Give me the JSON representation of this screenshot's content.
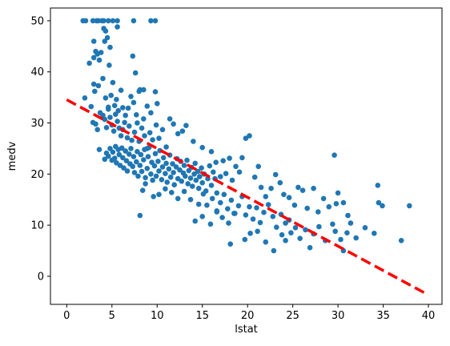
{
  "chart_data": {
    "type": "scatter",
    "title": "",
    "xlabel": "lstat",
    "ylabel": "medv",
    "xlim": [
      -1.8,
      41.5
    ],
    "ylim": [
      -5.5,
      52.5
    ],
    "x_ticks": [
      0,
      5,
      10,
      15,
      20,
      25,
      30,
      35,
      40
    ],
    "y_ticks": [
      0,
      10,
      20,
      30,
      40,
      50
    ],
    "grid": false,
    "colors": {
      "points": "#1f77b4",
      "fit_line": "#ff0000"
    },
    "series": [
      {
        "type": "scatter",
        "points": [
          [
            1.8,
            50
          ],
          [
            2.1,
            50
          ],
          [
            2.9,
            50
          ],
          [
            3.3,
            50
          ],
          [
            3.5,
            50
          ],
          [
            3.9,
            50
          ],
          [
            4.1,
            50
          ],
          [
            4.6,
            50
          ],
          [
            5.1,
            50
          ],
          [
            5.6,
            50
          ],
          [
            7.4,
            50
          ],
          [
            9.3,
            50
          ],
          [
            9.8,
            50
          ],
          [
            2.5,
            41.7
          ],
          [
            3.0,
            42.8
          ],
          [
            3.2,
            44.0
          ],
          [
            3.4,
            43.5
          ],
          [
            3.6,
            42.3
          ],
          [
            3.8,
            43.8
          ],
          [
            4.1,
            48.5
          ],
          [
            4.3,
            48.0
          ],
          [
            4.5,
            46.7
          ],
          [
            4.2,
            46.0
          ],
          [
            4.8,
            44.8
          ],
          [
            4.7,
            41.3
          ],
          [
            5.6,
            48.8
          ],
          [
            7.3,
            43.1
          ],
          [
            7.6,
            39.8
          ],
          [
            8.0,
            36.2
          ],
          [
            8.5,
            36.5
          ],
          [
            3.0,
            46.0
          ],
          [
            2.0,
            34.9
          ],
          [
            2.7,
            33.2
          ],
          [
            3.0,
            37.6
          ],
          [
            3.1,
            36.2
          ],
          [
            3.5,
            37.3
          ],
          [
            4.0,
            38.7
          ],
          [
            4.3,
            34.9
          ],
          [
            4.6,
            33.1
          ],
          [
            4.9,
            35.4
          ],
          [
            5.1,
            37.9
          ],
          [
            5.3,
            33.4
          ],
          [
            5.5,
            34.6
          ],
          [
            5.7,
            32.4
          ],
          [
            6.0,
            36.4
          ],
          [
            6.2,
            33.0
          ],
          [
            6.5,
            31.5
          ],
          [
            6.8,
            32.9
          ],
          [
            7.1,
            35.2
          ],
          [
            7.4,
            34.0
          ],
          [
            7.7,
            31.6
          ],
          [
            8.1,
            36.5
          ],
          [
            8.5,
            30.8
          ],
          [
            8.9,
            33.3
          ],
          [
            9.3,
            32.0
          ],
          [
            9.8,
            36.1
          ],
          [
            10.0,
            33.8
          ],
          [
            2.9,
            30.1
          ],
          [
            3.2,
            29.8
          ],
          [
            3.4,
            28.7
          ],
          [
            3.7,
            32.0
          ],
          [
            4.0,
            31.5
          ],
          [
            4.2,
            30.7
          ],
          [
            4.4,
            29.1
          ],
          [
            4.6,
            32.7
          ],
          [
            4.8,
            31.1
          ],
          [
            5.0,
            29.6
          ],
          [
            5.2,
            28.4
          ],
          [
            5.4,
            31.7
          ],
          [
            5.6,
            30.3
          ],
          [
            5.8,
            29.0
          ],
          [
            6.0,
            27.5
          ],
          [
            6.2,
            28.7
          ],
          [
            6.4,
            30.1
          ],
          [
            6.7,
            27.1
          ],
          [
            6.9,
            29.4
          ],
          [
            7.2,
            26.6
          ],
          [
            7.5,
            28.2
          ],
          [
            7.8,
            30.0
          ],
          [
            8.0,
            26.4
          ],
          [
            8.3,
            29.0
          ],
          [
            8.6,
            27.5
          ],
          [
            8.9,
            25.0
          ],
          [
            9.2,
            28.1
          ],
          [
            9.5,
            26.7
          ],
          [
            9.9,
            29.6
          ],
          [
            10.2,
            27.0
          ],
          [
            10.6,
            28.7
          ],
          [
            11.0,
            25.3
          ],
          [
            11.4,
            30.8
          ],
          [
            11.8,
            29.8
          ],
          [
            12.3,
            27.9
          ],
          [
            12.8,
            28.4
          ],
          [
            13.2,
            29.5
          ],
          [
            14.0,
            26.4
          ],
          [
            15.0,
            25.2
          ],
          [
            16.0,
            24.4
          ],
          [
            3.6,
            24.8
          ],
          [
            4.2,
            22.9
          ],
          [
            4.4,
            24.1
          ],
          [
            4.6,
            23.5
          ],
          [
            4.8,
            25.0
          ],
          [
            5.0,
            22.7
          ],
          [
            5.1,
            24.3
          ],
          [
            5.3,
            23.1
          ],
          [
            5.4,
            25.4
          ],
          [
            5.5,
            22.2
          ],
          [
            5.7,
            24.8
          ],
          [
            5.8,
            23.8
          ],
          [
            5.9,
            21.7
          ],
          [
            6.1,
            25.1
          ],
          [
            6.2,
            23.2
          ],
          [
            6.3,
            21.2
          ],
          [
            6.5,
            24.5
          ],
          [
            6.6,
            22.6
          ],
          [
            6.7,
            20.6
          ],
          [
            6.9,
            23.9
          ],
          [
            7.0,
            22.0
          ],
          [
            7.1,
            25.0
          ],
          [
            7.3,
            21.5
          ],
          [
            7.4,
            23.4
          ],
          [
            7.5,
            20.3
          ],
          [
            7.7,
            22.4
          ],
          [
            7.8,
            24.4
          ],
          [
            7.9,
            19.6
          ],
          [
            8.1,
            21.7
          ],
          [
            8.2,
            23.8
          ],
          [
            8.3,
            20.5
          ],
          [
            8.5,
            22.8
          ],
          [
            8.6,
            24.8
          ],
          [
            8.7,
            19.3
          ],
          [
            8.9,
            21.1
          ],
          [
            9.0,
            23.4
          ],
          [
            9.1,
            25.2
          ],
          [
            9.3,
            20.0
          ],
          [
            9.4,
            22.3
          ],
          [
            9.5,
            18.8
          ],
          [
            9.7,
            21.6
          ],
          [
            9.8,
            24.0
          ],
          [
            9.9,
            19.6
          ],
          [
            10.1,
            22.5
          ],
          [
            10.2,
            20.6
          ],
          [
            10.3,
            24.6
          ],
          [
            10.5,
            18.9
          ],
          [
            10.6,
            21.4
          ],
          [
            10.7,
            23.2
          ],
          [
            10.9,
            20.1
          ],
          [
            11.0,
            22.1
          ],
          [
            11.1,
            18.4
          ],
          [
            11.3,
            21.0
          ],
          [
            11.4,
            23.7
          ],
          [
            11.5,
            19.4
          ],
          [
            11.7,
            22.0
          ],
          [
            11.8,
            20.3
          ],
          [
            11.9,
            17.9
          ],
          [
            12.1,
            21.4
          ],
          [
            12.2,
            23.0
          ],
          [
            12.3,
            19.1
          ],
          [
            12.5,
            20.8
          ],
          [
            12.6,
            22.5
          ],
          [
            12.7,
            18.6
          ],
          [
            12.9,
            20.2
          ],
          [
            13.0,
            21.7
          ],
          [
            13.1,
            19.6
          ],
          [
            13.3,
            22.7
          ],
          [
            13.4,
            18.1
          ],
          [
            13.5,
            20.7
          ],
          [
            13.7,
            19.2
          ],
          [
            13.8,
            21.3
          ],
          [
            13.9,
            17.6
          ],
          [
            14.1,
            20.0
          ],
          [
            14.2,
            22.1
          ],
          [
            14.3,
            18.8
          ],
          [
            14.5,
            20.5
          ],
          [
            14.6,
            17.2
          ],
          [
            14.7,
            19.5
          ],
          [
            14.9,
            21.2
          ],
          [
            15.0,
            18.3
          ],
          [
            15.2,
            20.0
          ],
          [
            15.4,
            16.7
          ],
          [
            15.6,
            19.1
          ],
          [
            15.8,
            21.6
          ],
          [
            16.0,
            17.8
          ],
          [
            16.2,
            20.4
          ],
          [
            16.4,
            19.1
          ],
          [
            16.6,
            16.3
          ],
          [
            8.1,
            11.9
          ],
          [
            8.4,
            16.8
          ],
          [
            8.7,
            18.1
          ],
          [
            9.6,
            15.6
          ],
          [
            10.2,
            16.0
          ],
          [
            10.9,
            17.1
          ],
          [
            11.6,
            16.4
          ],
          [
            12.3,
            15.2
          ],
          [
            13.0,
            16.6
          ],
          [
            13.7,
            15.0
          ],
          [
            14.6,
            14.1
          ],
          [
            15.1,
            16.1
          ],
          [
            15.5,
            13.9
          ],
          [
            16.1,
            15.2
          ],
          [
            16.6,
            12.6
          ],
          [
            17.0,
            14.4
          ],
          [
            17.4,
            16.0
          ],
          [
            17.8,
            13.2
          ],
          [
            18.2,
            14.9
          ],
          [
            18.6,
            12.3
          ],
          [
            19.0,
            13.8
          ],
          [
            19.4,
            15.6
          ],
          [
            19.8,
            12.0
          ],
          [
            20.2,
            13.6
          ],
          [
            20.6,
            11.2
          ],
          [
            21.0,
            13.4
          ],
          [
            21.4,
            10.5
          ],
          [
            21.8,
            12.5
          ],
          [
            22.3,
            14.0
          ],
          [
            22.8,
            11.7
          ],
          [
            23.2,
            9.6
          ],
          [
            23.7,
            12.1
          ],
          [
            24.2,
            10.4
          ],
          [
            24.8,
            8.5
          ],
          [
            14.2,
            10.8
          ],
          [
            15.0,
            11.7
          ],
          [
            15.9,
            10.2
          ],
          [
            16.6,
            12.8
          ],
          [
            17.2,
            11.5
          ],
          [
            17.9,
            10.4
          ],
          [
            18.5,
            12.3
          ],
          [
            16.5,
            22.3
          ],
          [
            17.0,
            19.5
          ],
          [
            17.3,
            22.6
          ],
          [
            17.6,
            20.1
          ],
          [
            18.0,
            23.1
          ],
          [
            18.3,
            18.8
          ],
          [
            18.7,
            21.5
          ],
          [
            19.1,
            20.4
          ],
          [
            19.4,
            23.2
          ],
          [
            19.8,
            27.0
          ],
          [
            20.2,
            27.5
          ],
          [
            20.8,
            19.4
          ],
          [
            21.2,
            21.5
          ],
          [
            21.5,
            17.4
          ],
          [
            22.0,
            15.6
          ],
          [
            22.6,
            17.2
          ],
          [
            23.1,
            19.9
          ],
          [
            23.6,
            18.3
          ],
          [
            24.0,
            16.0
          ],
          [
            24.6,
            15.4
          ],
          [
            25.2,
            13.9
          ],
          [
            25.6,
            17.4
          ],
          [
            26.1,
            16.8
          ],
          [
            26.6,
            13.3
          ],
          [
            27.3,
            17.2
          ],
          [
            27.8,
            12.6
          ],
          [
            28.4,
            15.2
          ],
          [
            29.0,
            13.6
          ],
          [
            29.6,
            23.7
          ],
          [
            29.8,
            14.2
          ],
          [
            30.0,
            16.3
          ],
          [
            30.6,
            14.4
          ],
          [
            31.1,
            11.9
          ],
          [
            18.1,
            6.3
          ],
          [
            19.7,
            7.2
          ],
          [
            20.3,
            8.4
          ],
          [
            21.1,
            8.8
          ],
          [
            22.0,
            6.7
          ],
          [
            22.9,
            5.0
          ],
          [
            23.8,
            8.1
          ],
          [
            24.2,
            7.0
          ],
          [
            24.6,
            11.0
          ],
          [
            25.3,
            9.5
          ],
          [
            25.8,
            7.4
          ],
          [
            26.4,
            9.1
          ],
          [
            26.9,
            5.6
          ],
          [
            27.3,
            8.3
          ],
          [
            27.9,
            9.7
          ],
          [
            28.6,
            7.0
          ],
          [
            29.4,
            10.2
          ],
          [
            29.7,
            8.8
          ],
          [
            30.3,
            7.2
          ],
          [
            30.6,
            5.0
          ],
          [
            31.0,
            8.5
          ],
          [
            31.4,
            10.4
          ],
          [
            32.0,
            7.5
          ],
          [
            33.0,
            9.5
          ],
          [
            34.0,
            8.4
          ],
          [
            34.4,
            17.8
          ],
          [
            34.5,
            14.4
          ],
          [
            34.9,
            13.8
          ],
          [
            37.0,
            7.0
          ],
          [
            37.9,
            13.8
          ]
        ]
      },
      {
        "type": "line",
        "style": "dashed",
        "x": [
          0,
          39.7
        ],
        "y": [
          34.55,
          -3.37
        ]
      }
    ]
  }
}
